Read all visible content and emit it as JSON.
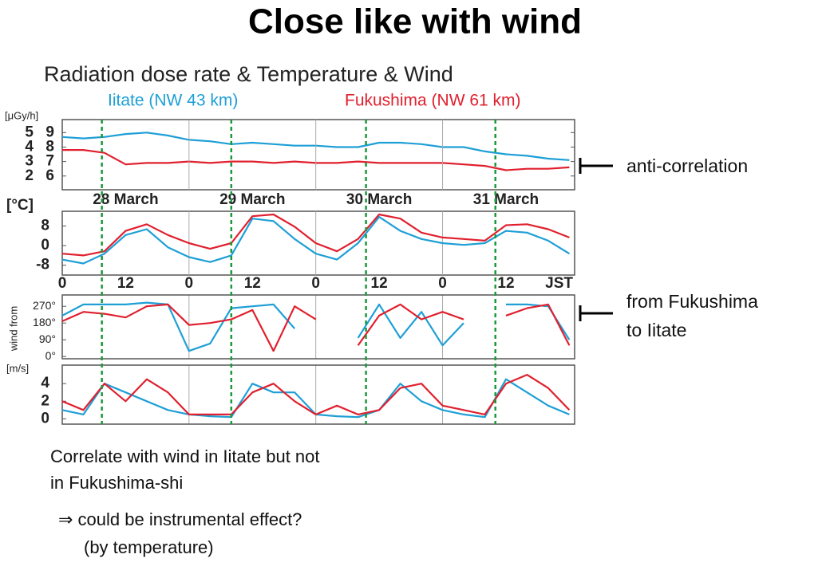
{
  "title": "Close like with wind",
  "chart_data": [
    {
      "type": "line",
      "title": "Radiation dose rate & Temperature & Wind",
      "x": [
        0,
        4,
        8,
        12,
        16,
        20,
        24,
        28,
        32,
        36,
        40,
        44,
        48,
        52,
        56,
        60,
        64,
        68,
        72,
        76,
        80,
        84,
        88,
        92,
        96
      ],
      "xlim": [
        0,
        97
      ],
      "ylabel": "[μGy/h]",
      "ylim": [
        1.05,
        5.9
      ],
      "yticks": [
        2,
        3,
        4,
        5
      ],
      "y2lim": [
        5.05,
        9.9
      ],
      "y2ticks": [
        6,
        7,
        8,
        9
      ],
      "vlines": [
        7.5,
        32,
        57.5,
        82
      ],
      "series": [
        {
          "name": "Iitate (NW 43 km)",
          "color": "#1e9fd6",
          "axis": "y2",
          "values": [
            8.7,
            8.6,
            8.7,
            8.9,
            9.0,
            8.8,
            8.5,
            8.4,
            8.2,
            8.3,
            8.2,
            8.1,
            8.1,
            8.0,
            8.0,
            8.3,
            8.3,
            8.2,
            8.0,
            8.0,
            7.7,
            7.5,
            7.4,
            7.2,
            7.1
          ]
        },
        {
          "name": "Fukushima (NW 61 km)",
          "color": "#e0202e",
          "values": [
            3.8,
            3.8,
            3.6,
            2.8,
            2.9,
            2.9,
            3.0,
            2.9,
            3.0,
            3.0,
            2.9,
            3.0,
            2.9,
            2.9,
            3.0,
            2.9,
            2.9,
            2.9,
            2.9,
            2.8,
            2.7,
            2.4,
            2.5,
            2.5,
            2.6
          ]
        }
      ]
    },
    {
      "type": "line",
      "x": [
        0,
        4,
        8,
        12,
        16,
        20,
        24,
        28,
        32,
        36,
        40,
        44,
        48,
        52,
        56,
        60,
        64,
        68,
        72,
        76,
        80,
        84,
        88,
        92,
        96
      ],
      "xlim": [
        0,
        97
      ],
      "ylabel": "[°C]",
      "ylim": [
        -12,
        14
      ],
      "yticks": [
        8,
        0,
        -8
      ],
      "xticks": [
        0,
        12,
        {
          "value": 24,
          "label": "0"
        },
        {
          "value": 36,
          "label": "12"
        },
        {
          "value": 48,
          "label": "0"
        },
        {
          "value": 60,
          "label": "12"
        },
        {
          "value": 72,
          "label": "0"
        },
        {
          "value": 84,
          "label": "12"
        }
      ],
      "xlabel": "JST",
      "x2ticks": [
        {
          "value": 12,
          "label": "28 March"
        },
        {
          "value": 36,
          "label": "29 March"
        },
        {
          "value": 60,
          "label": "30 March"
        },
        {
          "value": 84,
          "label": "31 March"
        }
      ],
      "series": [
        {
          "color": "#1e9fd6",
          "values": [
            -5.7,
            -7.3,
            -3.3,
            4.3,
            6.7,
            -0.7,
            -4.7,
            -6.7,
            -4,
            11,
            10,
            2.7,
            -3.3,
            -5.7,
            1,
            11.7,
            6,
            2.7,
            1,
            0.3,
            1,
            6,
            5.3,
            2,
            -3.3
          ]
        },
        {
          "color": "#e0202e",
          "values": [
            -3.3,
            -4,
            -2.3,
            6,
            8.7,
            4.3,
            1,
            -1.3,
            1,
            12,
            12.7,
            7.7,
            1,
            -2.3,
            2.7,
            12.7,
            11,
            5.3,
            3.3,
            2.7,
            2,
            8.3,
            8.7,
            6.7,
            3.3
          ]
        }
      ]
    },
    {
      "type": "line",
      "x": [
        0,
        4,
        8,
        12,
        16,
        20,
        24,
        28,
        32,
        36,
        40,
        44,
        48,
        52,
        56,
        60,
        64,
        68,
        72,
        76,
        80,
        84,
        88,
        92,
        96
      ],
      "xlim": [
        0,
        97
      ],
      "ylabel": "wind from",
      "ylim": [
        -12,
        331
      ],
      "yticks": [
        {
          "value": 270,
          "label": "270°"
        },
        {
          "value": 180,
          "label": "180°"
        },
        {
          "value": 90,
          "label": "90°"
        },
        {
          "value": 0,
          "label": "0°"
        }
      ],
      "series": [
        {
          "color": "#1e9fd6",
          "values": [
            220,
            280,
            280,
            280,
            290,
            280,
            30,
            70,
            260,
            270,
            280,
            150,
            null,
            null,
            100,
            280,
            100,
            240,
            60,
            180,
            null,
            280,
            280,
            270,
            90
          ]
        },
        {
          "color": "#e0202e",
          "values": [
            190,
            240,
            230,
            210,
            270,
            280,
            170,
            180,
            200,
            250,
            30,
            270,
            200,
            null,
            60,
            220,
            280,
            200,
            240,
            200,
            null,
            220,
            260,
            280,
            60
          ]
        }
      ]
    },
    {
      "type": "line",
      "x": [
        0,
        4,
        8,
        12,
        16,
        20,
        24,
        28,
        32,
        36,
        40,
        44,
        48,
        52,
        56,
        60,
        64,
        68,
        72,
        76,
        80,
        84,
        88,
        92,
        96
      ],
      "xlim": [
        0,
        97
      ],
      "ylabel": "[m/s]",
      "ylim": [
        -0.6,
        6.1
      ],
      "yticks": [
        0,
        2,
        4
      ],
      "series": [
        {
          "color": "#1e9fd6",
          "values": [
            1,
            0.5,
            4,
            3,
            2,
            1,
            0.5,
            0.3,
            0.2,
            4,
            3,
            3,
            0.5,
            0.3,
            0.2,
            1,
            4,
            2,
            1,
            0.5,
            0.2,
            4.5,
            3,
            1.5,
            0.5
          ]
        },
        {
          "color": "#e0202e",
          "values": [
            2,
            1,
            4,
            2,
            4.5,
            3,
            0.5,
            0.5,
            0.5,
            3,
            4,
            2,
            0.5,
            1.5,
            0.5,
            1,
            3.5,
            4,
            1.5,
            1,
            0.5,
            4,
            5,
            3.5,
            1
          ]
        }
      ]
    }
  ],
  "annotations": [
    "anti-correlation",
    "from Fukushima",
    "to Iitate"
  ],
  "body": [
    "Correlate with wind in Iitate but not",
    "in Fukushima-shi",
    "⇒ could be instrumental effect?",
    "(by temperature)"
  ]
}
